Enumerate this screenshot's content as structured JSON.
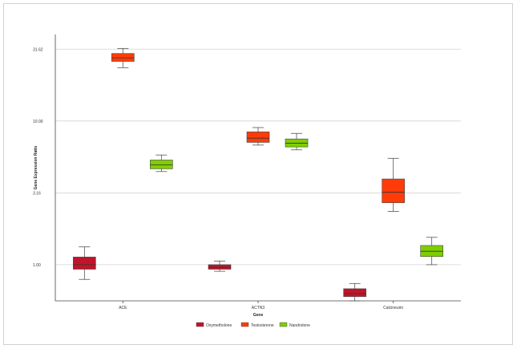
{
  "chart_data": {
    "type": "box",
    "title": "",
    "xlabel": "Gene",
    "ylabel": "Gene Expression Ratio",
    "yscale": "log",
    "ylim": [
      0.56,
      40
    ],
    "yticks": [
      1.0,
      3.16,
      10.0,
      31.62
    ],
    "ytick_labels": [
      "1.00",
      "3.16",
      "10.00",
      "31.62"
    ],
    "grid": true,
    "legend_position": "bottom",
    "categories": [
      "ACE",
      "ACTN3",
      "Calcineurin"
    ],
    "series": [
      {
        "name": "Oxymetholone",
        "color": "#c0152b",
        "boxes": [
          {
            "min": 0.79,
            "q1": 0.93,
            "median": 1.0,
            "q3": 1.13,
            "max": 1.33
          },
          {
            "min": 0.9,
            "q1": 0.93,
            "median": 0.96,
            "q3": 1.0,
            "max": 1.06
          },
          {
            "min": 0.56,
            "q1": 0.6,
            "median": 0.63,
            "q3": 0.68,
            "max": 0.74
          }
        ]
      },
      {
        "name": "Testosterone",
        "color": "#ff3b0a",
        "boxes": [
          {
            "min": 23.5,
            "q1": 26.0,
            "median": 27.5,
            "q3": 29.5,
            "max": 32.0
          },
          {
            "min": 6.8,
            "q1": 7.1,
            "median": 7.6,
            "q3": 8.4,
            "max": 9.0
          },
          {
            "min": 2.35,
            "q1": 2.7,
            "median": 3.2,
            "q3": 3.95,
            "max": 5.5
          }
        ]
      },
      {
        "name": "Nandrolone",
        "color": "#7fce00",
        "boxes": [
          {
            "min": 4.45,
            "q1": 4.65,
            "median": 4.95,
            "q3": 5.35,
            "max": 5.8
          },
          {
            "min": 6.3,
            "q1": 6.6,
            "median": 7.0,
            "q3": 7.5,
            "max": 8.2
          },
          {
            "min": 1.0,
            "q1": 1.14,
            "median": 1.24,
            "q3": 1.36,
            "max": 1.55
          }
        ]
      }
    ]
  }
}
